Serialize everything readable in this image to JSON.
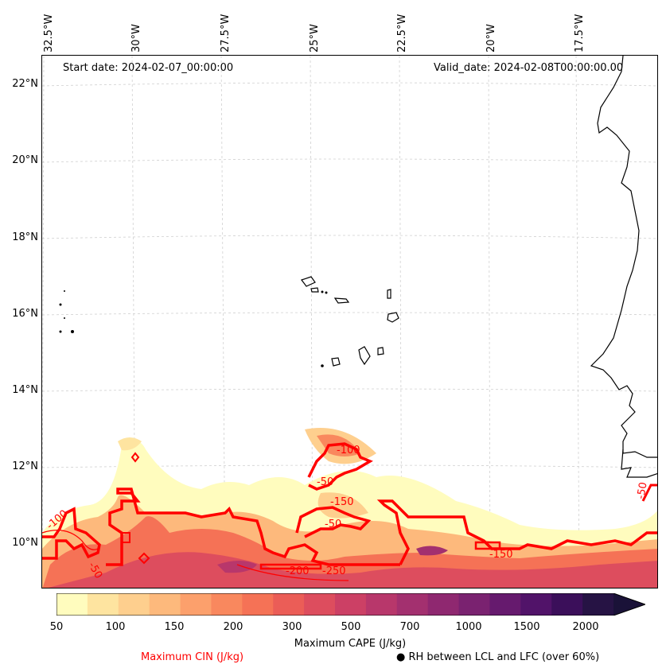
{
  "map": {
    "start_date_label": "Start date: 2024-02-07_00:00:00",
    "valid_date_label": "Valid_date: 2024-02-08T00:00:00.00",
    "lon_labels": [
      "32.5°W",
      "30°W",
      "27.5°W",
      "25°W",
      "22.5°W",
      "20°W",
      "17.5°W"
    ],
    "lat_labels": [
      "22°N",
      "20°N",
      "18°N",
      "16°N",
      "14°N",
      "12°N",
      "10°N"
    ],
    "cin_contour_labels": [
      "-100",
      "-50",
      "-150",
      "-50",
      "-100",
      "-50",
      "-150",
      "-200",
      "-250",
      "-50"
    ],
    "colors": {
      "cin_line": "#ff0000",
      "coastline": "#000000",
      "grid": "#cccccc"
    }
  },
  "colorbar": {
    "title": "Maximum CAPE (J/kg)",
    "ticks": [
      "50",
      "100",
      "150",
      "200",
      "300",
      "500",
      "700",
      "1000",
      "1500",
      "2000"
    ],
    "colors": [
      "#fffcbe",
      "#fee4a0",
      "#fecf8e",
      "#fdb97c",
      "#fca06c",
      "#f9885e",
      "#f57256",
      "#eb5d57",
      "#dd4d5e",
      "#cc4065",
      "#b8376b",
      "#a3306f",
      "#8f2870",
      "#7a2270",
      "#661a6e",
      "#511369",
      "#3b0f5a",
      "#261344",
      "#1a1238"
    ]
  },
  "legend": {
    "cin_label": "Maximum CIN (J/kg)",
    "rh_label": "● RH between LCL and LFC (over 60%)",
    "cin_color": "#ff0000"
  }
}
